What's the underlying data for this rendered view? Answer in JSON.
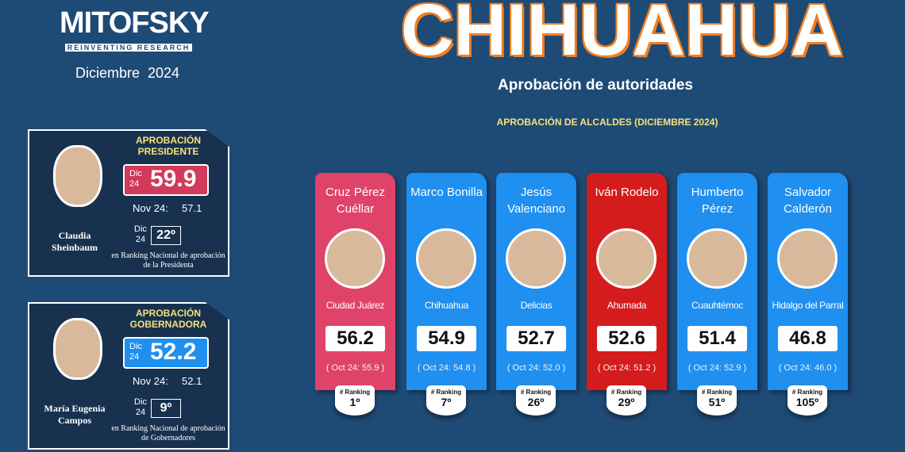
{
  "header": {
    "logo": "MITOFSKY",
    "tagline": "REINVENTING RESEARCH",
    "date": "Diciembre  2024",
    "title": "CHIHUAHUA",
    "subtitle": "Aprobación de autoridades",
    "section": "APROBACIÓN DE ALCALDES (DICIEMBRE 2024)"
  },
  "officials": [
    {
      "label": "APROBACIÓN PRESIDENTE",
      "name": "Claudia Sheinbaum",
      "period": "Dic 24",
      "value": "59.9",
      "prev_label": "Nov 24:",
      "prev_value": "57.1",
      "rank_period": "Dic 24",
      "rank": "22º",
      "rank_note": "en Ranking Nacional de aprobación de la Presidenta"
    },
    {
      "label": "APROBACIÓN GOBERNADORA",
      "name": "María Eugenia Campos",
      "period": "Dic 24",
      "value": "52.2",
      "prev_label": "Nov 24:",
      "prev_value": "52.1",
      "rank_period": "Dic 24",
      "rank": "9º",
      "rank_note": "en Ranking Nacional de aprobación de Gobernadores"
    }
  ],
  "mayors": [
    {
      "name": "Cruz Pérez Cuéllar",
      "city": "Ciudad Juárez",
      "value": "56.2",
      "prev": "( Oct 24: 55.9 )",
      "rank_label": "# Ranking",
      "rank": "1º"
    },
    {
      "name": "Marco Bonilla",
      "city": "Chihuahua",
      "value": "54.9",
      "prev": "( Oct 24: 54.8 )",
      "rank_label": "# Ranking",
      "rank": "7º"
    },
    {
      "name": "Jesús Valenciano",
      "city": "Delicias",
      "value": "52.7",
      "prev": "( Oct 24: 52.0 )",
      "rank_label": "# Ranking",
      "rank": "26º"
    },
    {
      "name": "Iván Rodelo",
      "city": "Ahumada",
      "value": "52.6",
      "prev": "( Oct 24: 51.2 )",
      "rank_label": "# Ranking",
      "rank": "29º"
    },
    {
      "name": "Humberto Pérez",
      "city": "Cuauhtémoc",
      "value": "51.4",
      "prev": "( Oct 24: 52.9 )",
      "rank_label": "# Ranking",
      "rank": "51º"
    },
    {
      "name": "Salvador Calderón",
      "city": "Hidalgo del Parral",
      "value": "46.8",
      "prev": "( Oct 24: 46.0 )",
      "rank_label": "# Ranking",
      "rank": "105º"
    }
  ]
}
